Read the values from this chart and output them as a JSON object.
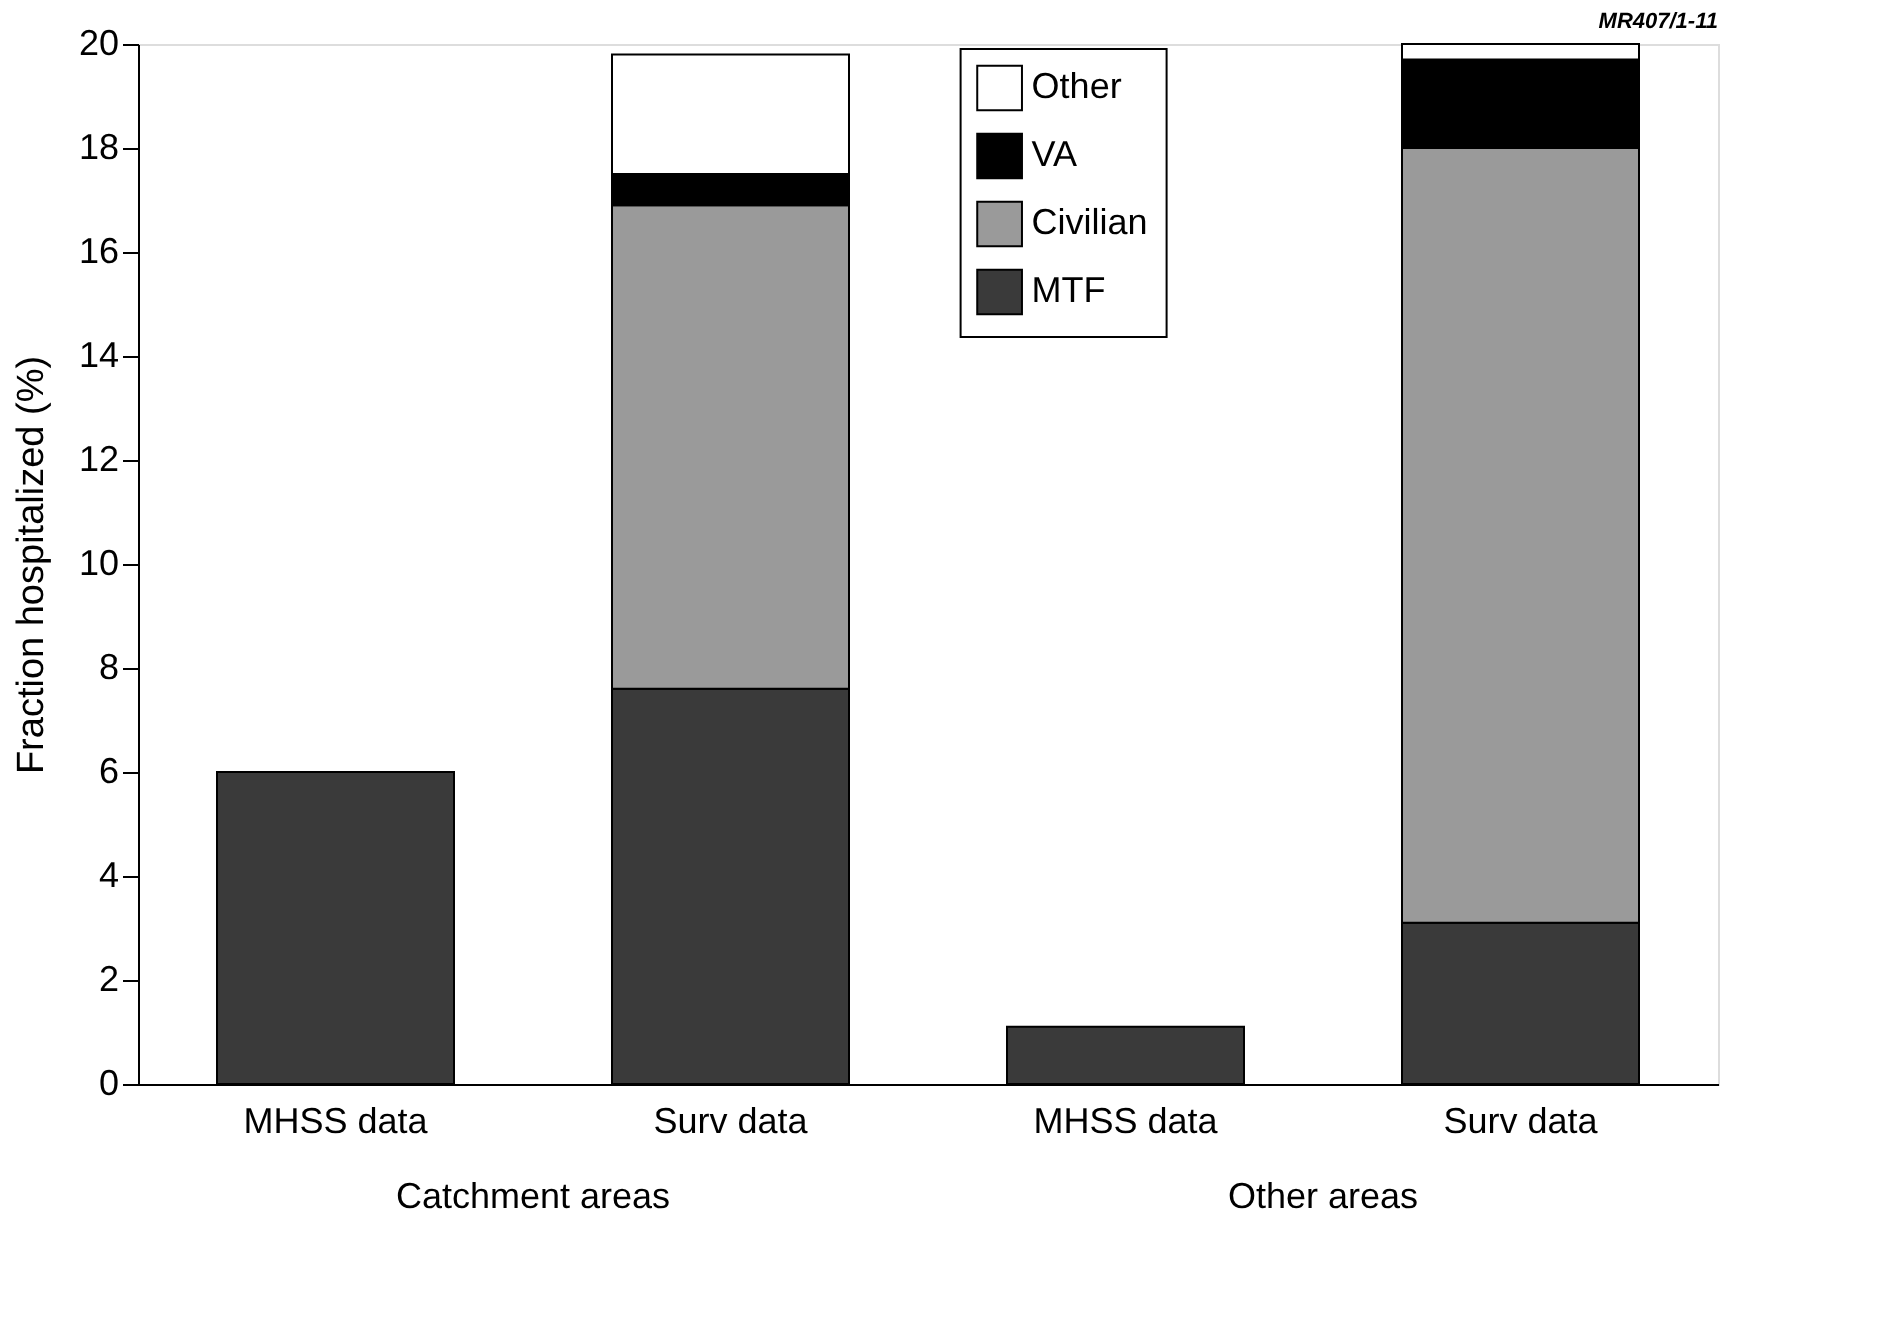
{
  "chart_data": {
    "type": "bar",
    "stacked": true,
    "ylabel": "Fraction hospitalized (%)",
    "categories": [
      "MHSS data",
      "Surv data",
      "MHSS data",
      "Surv data"
    ],
    "series": [
      {
        "name": "MTF",
        "color": "#3a3a3a",
        "values": [
          6.0,
          7.6,
          1.1,
          3.1
        ]
      },
      {
        "name": "Civilian",
        "color": "#9a9a9a",
        "values": [
          null,
          9.3,
          null,
          14.9
        ]
      },
      {
        "name": "VA",
        "color": "#000000",
        "values": [
          null,
          0.6,
          null,
          1.7
        ]
      },
      {
        "name": "Other",
        "color": "#ffffff",
        "values": [
          null,
          2.3,
          null,
          0.3
        ]
      }
    ],
    "ylim": [
      0,
      20
    ],
    "yticks": [
      0,
      2,
      4,
      6,
      8,
      10,
      12,
      14,
      16,
      18,
      20
    ],
    "annotations": [
      "Catchment areas",
      "Other areas",
      "MR407/1-11"
    ],
    "grid": false,
    "legend": "top"
  }
}
